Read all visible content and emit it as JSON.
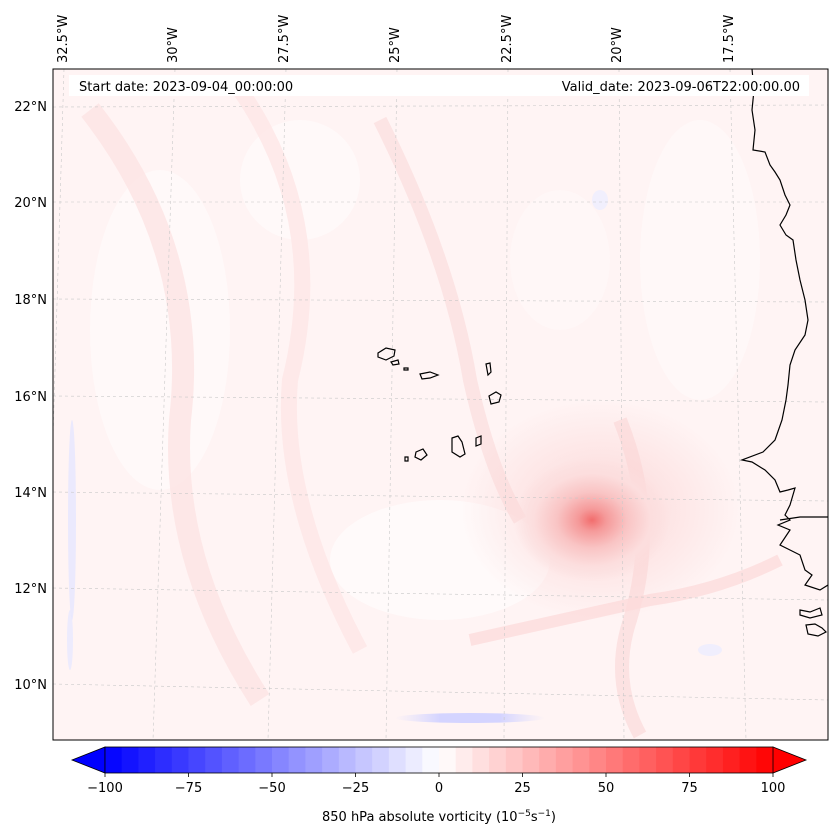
{
  "header": {
    "start_date": "Start date: 2023-09-04_00:00:00",
    "valid_date": "Valid_date: 2023-09-06T22:00:00.00"
  },
  "longitude_labels": [
    "32.5°W",
    "30°W",
    "27.5°W",
    "25°W",
    "22.5°W",
    "20°W",
    "17.5°W"
  ],
  "latitude_labels": [
    "22°N",
    "20°N",
    "18°N",
    "16°N",
    "14°N",
    "12°N",
    "10°N"
  ],
  "colorbar": {
    "ticks": [
      "−100",
      "−75",
      "−50",
      "−25",
      "0",
      "25",
      "50",
      "75",
      "100"
    ],
    "label": "850 hPa absolute vorticity (10",
    "label_exp1": "−5",
    "label_mid": "s",
    "label_exp2": "−1",
    "label_end": ")",
    "min": -100,
    "max": 100,
    "colors": {
      "negative": "#0000ff",
      "zero": "#ffffff",
      "positive": "#ff0000"
    }
  },
  "map": {
    "center_vortex": {
      "lon": -20.3,
      "lat": 13.4,
      "peak_vorticity": 55
    },
    "background_color": "#fff4f4"
  }
}
